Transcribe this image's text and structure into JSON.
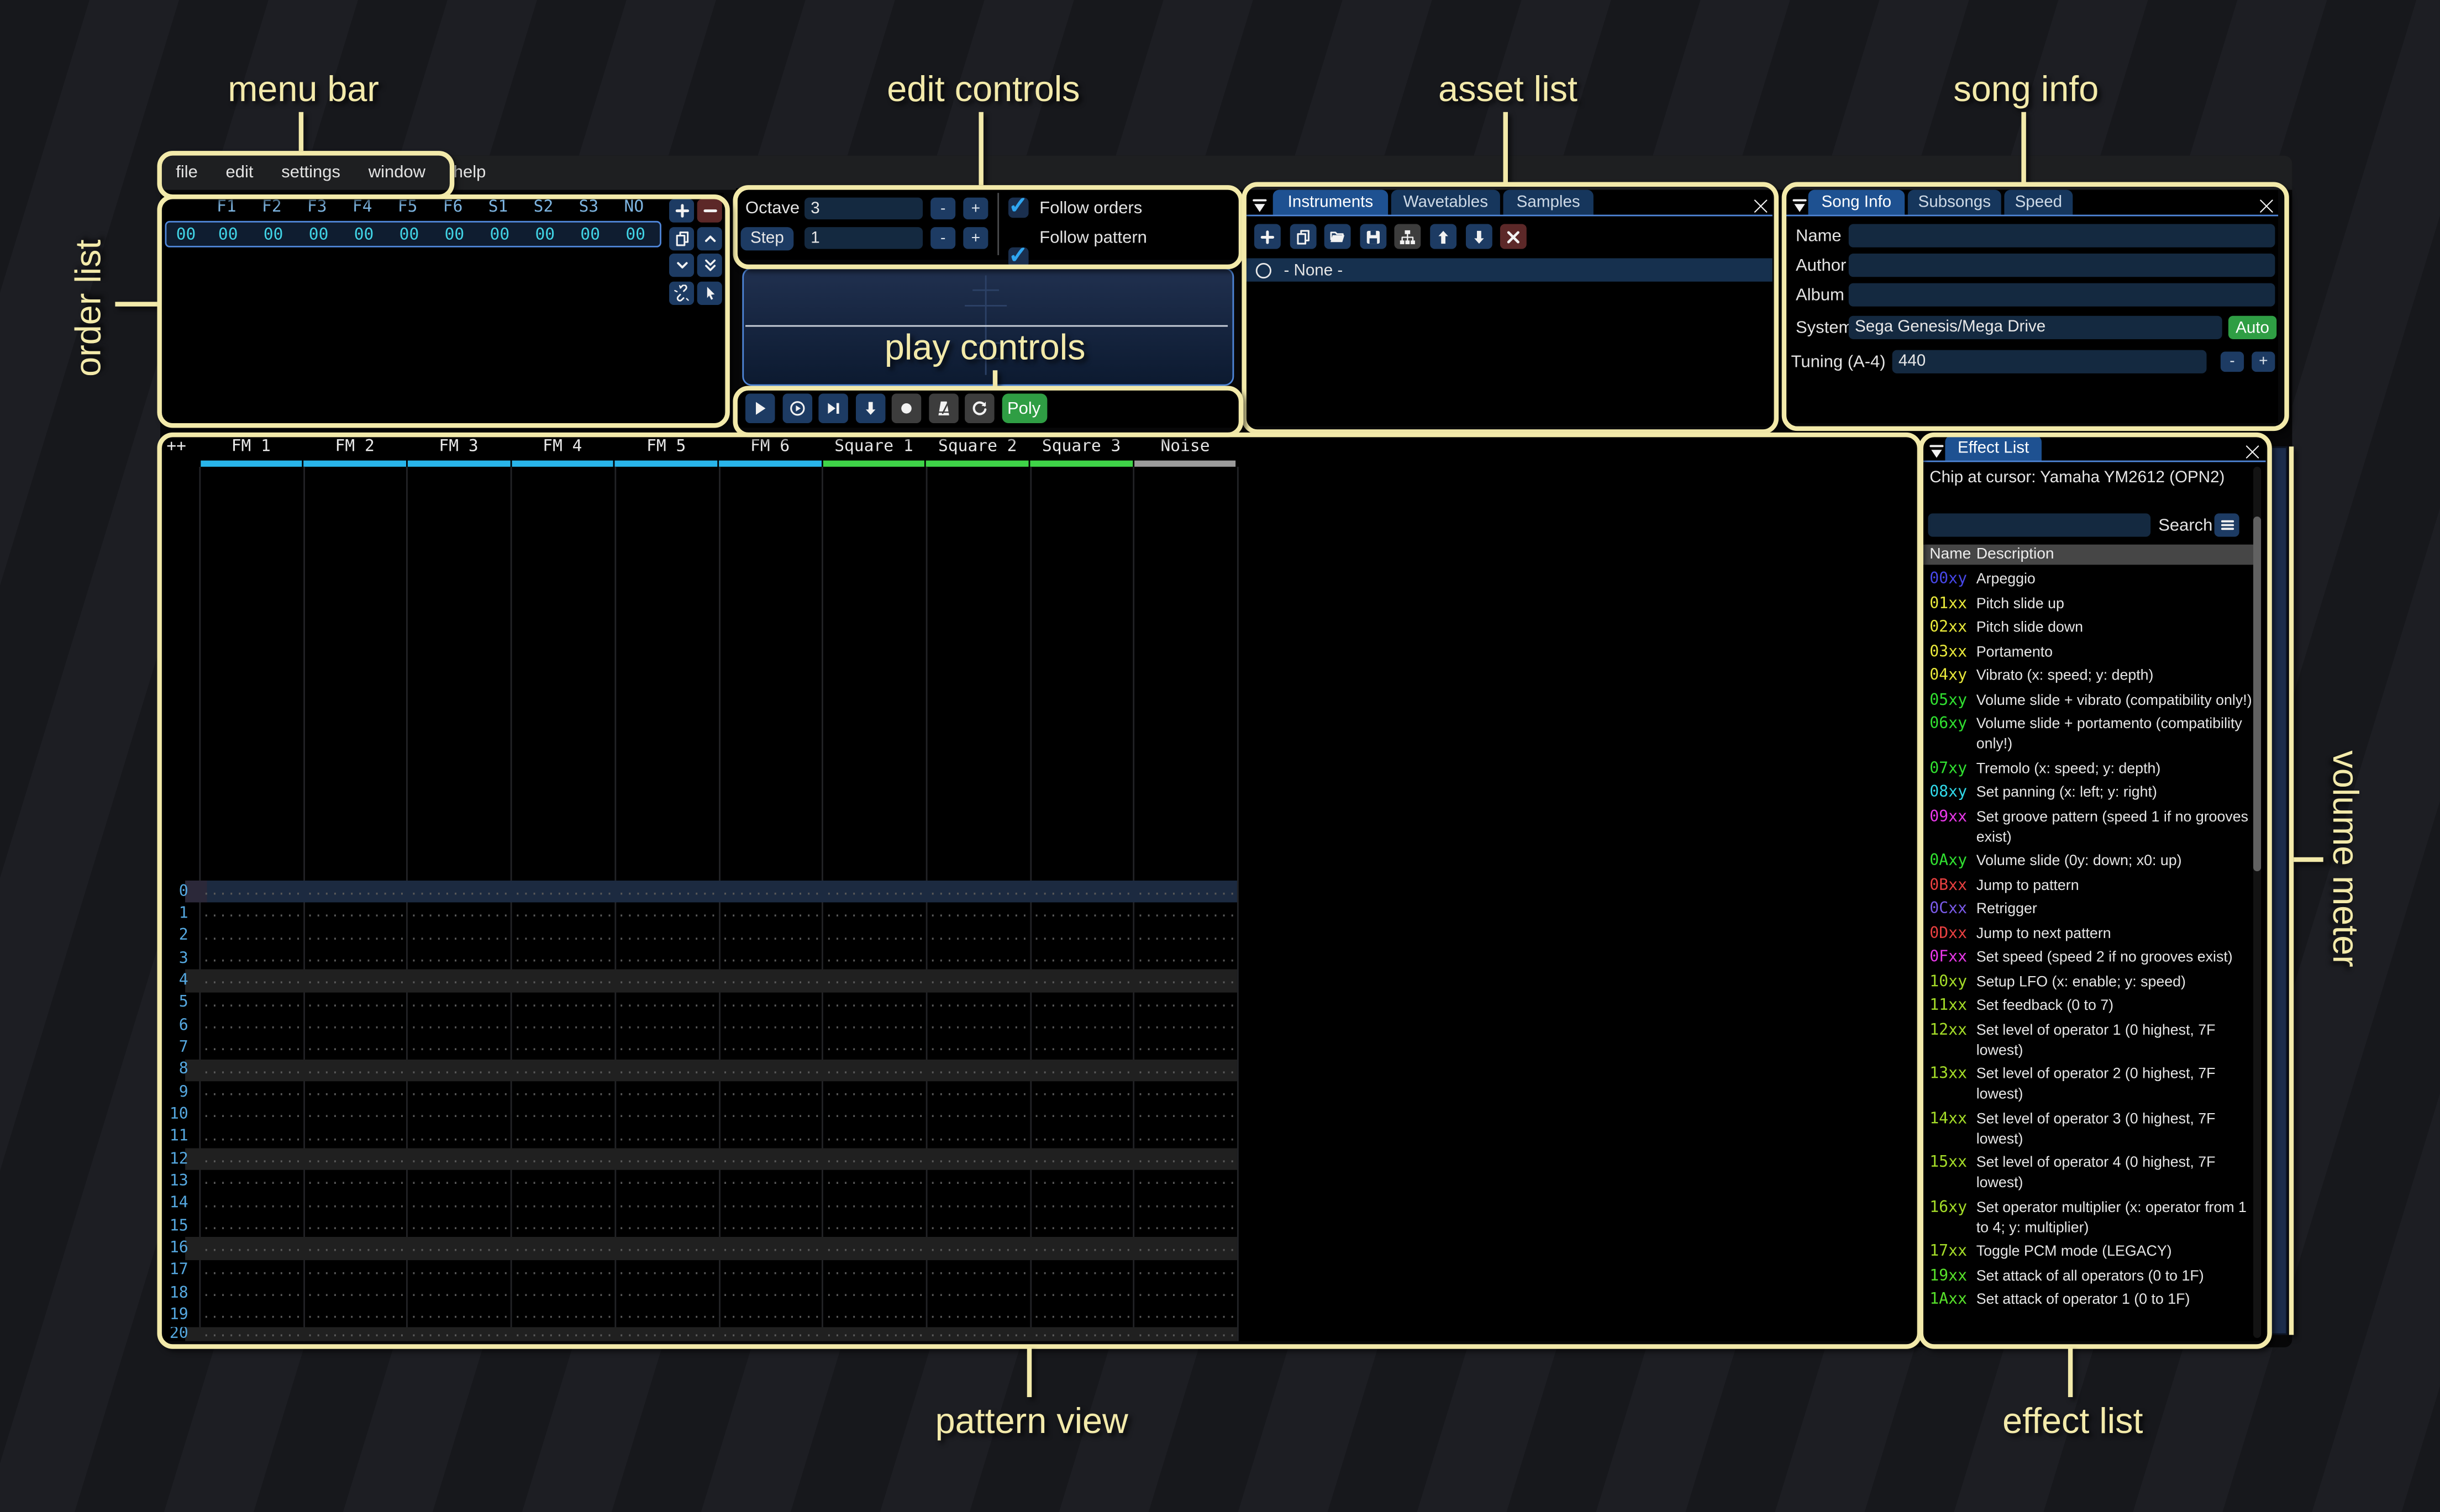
{
  "annotations": {
    "menu_bar": "menu bar",
    "edit_controls": "edit controls",
    "asset_list": "asset list",
    "song_info": "song info",
    "order_list": "order list",
    "play_controls": "play controls",
    "pattern_view": "pattern view",
    "effect_list": "effect list",
    "volume_meter": "volume meter",
    "accent_color": "#f3eaaa"
  },
  "menu": {
    "items": [
      "file",
      "edit",
      "settings",
      "window",
      "help"
    ]
  },
  "order_list": {
    "columns": [
      "F1",
      "F2",
      "F3",
      "F4",
      "F5",
      "F6",
      "S1",
      "S2",
      "S3",
      "NO"
    ],
    "rows": [
      {
        "index": "00",
        "values": [
          "00",
          "00",
          "00",
          "00",
          "00",
          "00",
          "00",
          "00",
          "00",
          "00"
        ]
      }
    ],
    "buttons": [
      {
        "icon": "plus",
        "variant": "blue",
        "name": "add-order"
      },
      {
        "icon": "minus",
        "variant": "red",
        "name": "remove-order"
      },
      {
        "icon": "copy",
        "variant": "blue",
        "name": "duplicate-order"
      },
      {
        "icon": "chevron-up",
        "variant": "blue",
        "name": "move-order-up"
      },
      {
        "icon": "chevron-down",
        "variant": "blue",
        "name": "move-order-down"
      },
      {
        "icon": "chevrons-down",
        "variant": "blue",
        "name": "duplicate-order-end"
      },
      {
        "icon": "unlink",
        "variant": "blue",
        "name": "deep-clone-order"
      },
      {
        "icon": "cursor",
        "variant": "blue",
        "name": "order-change-mode"
      }
    ]
  },
  "edit_controls": {
    "octave_label": "Octave",
    "octave_value": "3",
    "step_label": "Step",
    "step_value": "1",
    "minus_label": "-",
    "plus_label": "+",
    "follow_orders_label": "Follow orders",
    "follow_pattern_label": "Follow pattern",
    "follow_orders_checked": true,
    "follow_pattern_checked": true
  },
  "play_controls": {
    "buttons": [
      {
        "icon": "play",
        "variant": "blue",
        "name": "play"
      },
      {
        "icon": "play-circle",
        "variant": "blue",
        "name": "play-from-start"
      },
      {
        "icon": "step-forward",
        "variant": "blue",
        "name": "play-one-row"
      },
      {
        "icon": "arrow-down-bold",
        "variant": "blue",
        "name": "step-row"
      },
      {
        "icon": "record",
        "variant": "gray",
        "name": "edit-record"
      },
      {
        "icon": "metronome",
        "variant": "gray",
        "name": "metronome"
      },
      {
        "icon": "repeat",
        "variant": "gray",
        "name": "repeat-pattern"
      },
      {
        "icon": "",
        "variant": "green",
        "name": "poly-mono"
      }
    ],
    "poly_label": "Poly"
  },
  "asset_list": {
    "tabs": [
      "Instruments",
      "Wavetables",
      "Samples"
    ],
    "toolbar": [
      {
        "icon": "plus",
        "variant": "blue",
        "name": "add-asset"
      },
      {
        "icon": "copy",
        "variant": "blue",
        "name": "duplicate-asset"
      },
      {
        "icon": "folder-open",
        "variant": "blue",
        "name": "open-asset"
      },
      {
        "icon": "floppy",
        "variant": "blue",
        "name": "save-asset"
      },
      {
        "icon": "tree",
        "variant": "gray",
        "name": "toggle-folders"
      },
      {
        "icon": "arrow-up",
        "variant": "blue",
        "name": "move-asset-up"
      },
      {
        "icon": "arrow-down",
        "variant": "blue",
        "name": "move-asset-down"
      },
      {
        "icon": "close-x",
        "variant": "red",
        "name": "delete-asset"
      }
    ],
    "selected_item": "- None -"
  },
  "song_info": {
    "tabs": [
      "Song Info",
      "Subsongs",
      "Speed"
    ],
    "name_label": "Name",
    "name_value": "",
    "author_label": "Author",
    "author_value": "",
    "album_label": "Album",
    "album_value": "",
    "system_label": "System",
    "system_value": "Sega Genesis/Mega Drive",
    "auto_label": "Auto",
    "tuning_label": "Tuning (A-4)",
    "tuning_value": "440",
    "minus_label": "-",
    "plus_label": "+"
  },
  "pattern": {
    "corner": "++",
    "channels": [
      {
        "name": "FM 1",
        "color": "#29b5ea"
      },
      {
        "name": "FM 2",
        "color": "#29b5ea"
      },
      {
        "name": "FM 3",
        "color": "#29b5ea"
      },
      {
        "name": "FM 4",
        "color": "#29b5ea"
      },
      {
        "name": "FM 5",
        "color": "#29b5ea"
      },
      {
        "name": "FM 6",
        "color": "#29b5ea"
      },
      {
        "name": "Square 1",
        "color": "#3fd448"
      },
      {
        "name": "Square 2",
        "color": "#3fd448"
      },
      {
        "name": "Square 3",
        "color": "#3fd448"
      },
      {
        "name": "Noise",
        "color": "#9b9b9b"
      }
    ],
    "visible_rows": 22,
    "beat_highlight_interval": 4,
    "selected_row": 0,
    "empty_cell": "............."
  },
  "effect_list": {
    "tab": "Effect List",
    "chip_text": "Chip at cursor: Yamaha YM2612 (OPN2)",
    "search_value": "",
    "search_label": "Search",
    "name_header": "Name",
    "description_header": "Description",
    "effects": [
      {
        "name": "00xy",
        "color": "#4747e8",
        "desc": "Arpeggio"
      },
      {
        "name": "01xx",
        "color": "#e8e83a",
        "desc": "Pitch slide up"
      },
      {
        "name": "02xx",
        "color": "#e8e83a",
        "desc": "Pitch slide down"
      },
      {
        "name": "03xx",
        "color": "#e8e83a",
        "desc": "Portamento"
      },
      {
        "name": "04xy",
        "color": "#e8e83a",
        "desc": "Vibrato (x: speed; y: depth)"
      },
      {
        "name": "05xy",
        "color": "#30e030",
        "desc": "Volume slide + vibrato (compatibility only!)"
      },
      {
        "name": "06xy",
        "color": "#30e030",
        "desc": "Volume slide + portamento (compatibility only!)"
      },
      {
        "name": "07xy",
        "color": "#30e030",
        "desc": "Tremolo (x: speed; y: depth)"
      },
      {
        "name": "08xy",
        "color": "#30d8e8",
        "desc": "Set panning (x: left; y: right)"
      },
      {
        "name": "09xx",
        "color": "#e838e8",
        "desc": "Set groove pattern (speed 1 if no grooves exist)"
      },
      {
        "name": "0Axy",
        "color": "#30e030",
        "desc": "Volume slide (0y: down; x0: up)"
      },
      {
        "name": "0Bxx",
        "color": "#e84040",
        "desc": "Jump to pattern"
      },
      {
        "name": "0Cxx",
        "color": "#7a5ae8",
        "desc": "Retrigger"
      },
      {
        "name": "0Dxx",
        "color": "#e84040",
        "desc": "Jump to next pattern"
      },
      {
        "name": "0Fxx",
        "color": "#e838e8",
        "desc": "Set speed (speed 2 if no grooves exist)"
      },
      {
        "name": "10xy",
        "color": "#a4dc28",
        "desc": "Setup LFO (x: enable; y: speed)"
      },
      {
        "name": "11xx",
        "color": "#a4dc28",
        "desc": "Set feedback (0 to 7)"
      },
      {
        "name": "12xx",
        "color": "#a4dc28",
        "desc": "Set level of operator 1 (0 highest, 7F lowest)"
      },
      {
        "name": "13xx",
        "color": "#a4dc28",
        "desc": "Set level of operator 2 (0 highest, 7F lowest)"
      },
      {
        "name": "14xx",
        "color": "#a4dc28",
        "desc": "Set level of operator 3 (0 highest, 7F lowest)"
      },
      {
        "name": "15xx",
        "color": "#a4dc28",
        "desc": "Set level of operator 4 (0 highest, 7F lowest)"
      },
      {
        "name": "16xy",
        "color": "#a4dc28",
        "desc": "Set operator multiplier (x: operator from 1 to 4; y: multiplier)"
      },
      {
        "name": "17xx",
        "color": "#a4dc28",
        "desc": "Toggle PCM mode (LEGACY)"
      },
      {
        "name": "19xx",
        "color": "#56e02a",
        "desc": "Set attack of all operators (0 to 1F)"
      },
      {
        "name": "1Axx",
        "color": "#56e02a",
        "desc": "Set attack of operator 1 (0 to 1F)"
      }
    ]
  }
}
